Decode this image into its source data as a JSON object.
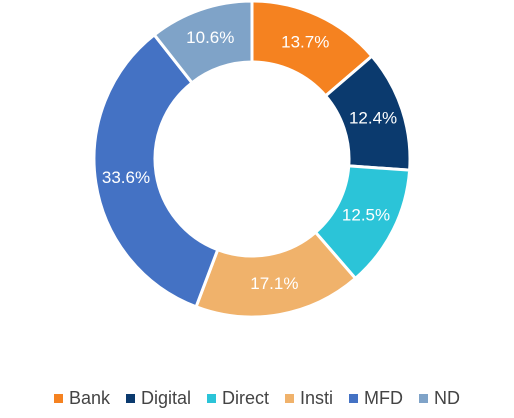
{
  "chart_data": {
    "type": "donut",
    "categories": [
      "Bank",
      "Digital",
      "Direct",
      "Insti",
      "MFD",
      "ND"
    ],
    "values": [
      13.7,
      12.4,
      12.5,
      17.1,
      33.6,
      10.6
    ],
    "value_labels": [
      "13.7%",
      "12.4%",
      "12.5%",
      "17.1%",
      "33.6%",
      "10.6%"
    ],
    "colors": [
      "#f58220",
      "#0b3a6e",
      "#2bc4d8",
      "#f0b26b",
      "#4472c4",
      "#7fa3c8"
    ],
    "legend": "bottom"
  }
}
